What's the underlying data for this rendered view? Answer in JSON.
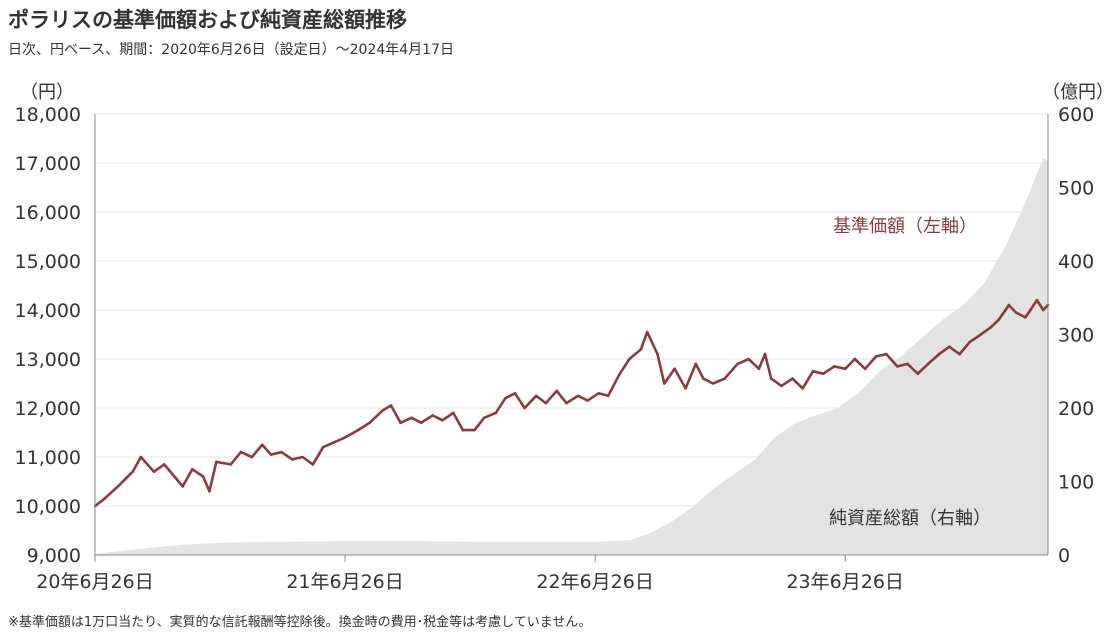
{
  "header": {
    "title": "ポラリスの基準価額および純資産総額推移",
    "subtitle": "日次、円ベース、期間：2020年6月26日（設定日）～2024年4月17日"
  },
  "footnote": "※基準価額は1万口当たり、実質的な信託報酬等控除後。換金時の費用･税金等は考慮していません。",
  "colors": {
    "nav_line": "#8b3a3e",
    "aum_area": "#e3e3e3",
    "grid": "#e6e6e6",
    "axis": "#888888"
  },
  "chart_data": {
    "type": "line",
    "title": "ポラリスの基準価額および純資産総額推移",
    "x_ticks": [
      "20年6月26日",
      "21年6月26日",
      "22年6月26日",
      "23年6月26日"
    ],
    "y_left": {
      "unit_label": "（円）",
      "min": 9000,
      "max": 18000,
      "ticks": [
        "9,000",
        "10,000",
        "11,000",
        "12,000",
        "13,000",
        "14,000",
        "15,000",
        "16,000",
        "17,000",
        "18,000"
      ]
    },
    "y_right": {
      "unit_label": "（億円）",
      "min": 0,
      "max": 600,
      "ticks": [
        "0",
        "100",
        "200",
        "300",
        "400",
        "500",
        "600"
      ]
    },
    "grid": true,
    "series": [
      {
        "name": "基準価額（左軸）",
        "axis": "left",
        "kind": "line",
        "points": [
          [
            "2020-06-26",
            10000
          ],
          [
            "2020-07-10",
            10150
          ],
          [
            "2020-07-31",
            10420
          ],
          [
            "2020-08-20",
            10700
          ],
          [
            "2020-09-01",
            11000
          ],
          [
            "2020-09-20",
            10700
          ],
          [
            "2020-10-05",
            10850
          ],
          [
            "2020-10-20",
            10600
          ],
          [
            "2020-11-01",
            10400
          ],
          [
            "2020-11-15",
            10750
          ],
          [
            "2020-12-01",
            10600
          ],
          [
            "2020-12-10",
            10300
          ],
          [
            "2020-12-20",
            10900
          ],
          [
            "2021-01-10",
            10850
          ],
          [
            "2021-01-25",
            11100
          ],
          [
            "2021-02-10",
            11000
          ],
          [
            "2021-02-25",
            11250
          ],
          [
            "2021-03-10",
            11050
          ],
          [
            "2021-03-25",
            11100
          ],
          [
            "2021-04-10",
            10950
          ],
          [
            "2021-04-25",
            11000
          ],
          [
            "2021-05-10",
            10850
          ],
          [
            "2021-05-25",
            11200
          ],
          [
            "2021-06-10",
            11300
          ],
          [
            "2021-06-26",
            11400
          ],
          [
            "2021-07-15",
            11550
          ],
          [
            "2021-08-01",
            11700
          ],
          [
            "2021-08-20",
            11950
          ],
          [
            "2021-09-01",
            12050
          ],
          [
            "2021-09-15",
            11700
          ],
          [
            "2021-10-01",
            11800
          ],
          [
            "2021-10-15",
            11700
          ],
          [
            "2021-11-01",
            11850
          ],
          [
            "2021-11-15",
            11750
          ],
          [
            "2021-12-01",
            11900
          ],
          [
            "2021-12-15",
            11550
          ],
          [
            "2022-01-01",
            11550
          ],
          [
            "2022-01-15",
            11800
          ],
          [
            "2022-02-01",
            11900
          ],
          [
            "2022-02-15",
            12200
          ],
          [
            "2022-03-01",
            12300
          ],
          [
            "2022-03-15",
            12000
          ],
          [
            "2022-04-01",
            12250
          ],
          [
            "2022-04-15",
            12100
          ],
          [
            "2022-05-01",
            12350
          ],
          [
            "2022-05-15",
            12100
          ],
          [
            "2022-06-01",
            12250
          ],
          [
            "2022-06-15",
            12150
          ],
          [
            "2022-07-01",
            12300
          ],
          [
            "2022-07-15",
            12250
          ],
          [
            "2022-08-01",
            12700
          ],
          [
            "2022-08-15",
            13000
          ],
          [
            "2022-09-01",
            13200
          ],
          [
            "2022-09-10",
            13550
          ],
          [
            "2022-09-25",
            13100
          ],
          [
            "2022-10-05",
            12500
          ],
          [
            "2022-10-20",
            12800
          ],
          [
            "2022-11-05",
            12400
          ],
          [
            "2022-11-20",
            12900
          ],
          [
            "2022-12-01",
            12600
          ],
          [
            "2022-12-15",
            12500
          ],
          [
            "2023-01-01",
            12600
          ],
          [
            "2023-01-20",
            12900
          ],
          [
            "2023-02-05",
            13000
          ],
          [
            "2023-02-20",
            12800
          ],
          [
            "2023-03-01",
            13100
          ],
          [
            "2023-03-10",
            12600
          ],
          [
            "2023-03-25",
            12450
          ],
          [
            "2023-04-10",
            12600
          ],
          [
            "2023-04-25",
            12400
          ],
          [
            "2023-05-10",
            12750
          ],
          [
            "2023-05-25",
            12700
          ],
          [
            "2023-06-10",
            12850
          ],
          [
            "2023-06-26",
            12800
          ],
          [
            "2023-07-10",
            13000
          ],
          [
            "2023-07-25",
            12800
          ],
          [
            "2023-08-10",
            13050
          ],
          [
            "2023-08-25",
            13100
          ],
          [
            "2023-09-10",
            12850
          ],
          [
            "2023-09-25",
            12900
          ],
          [
            "2023-10-10",
            12700
          ],
          [
            "2023-10-25",
            12900
          ],
          [
            "2023-11-10",
            13100
          ],
          [
            "2023-11-25",
            13250
          ],
          [
            "2023-12-10",
            13100
          ],
          [
            "2023-12-25",
            13350
          ],
          [
            "2024-01-10",
            13500
          ],
          [
            "2024-01-25",
            13650
          ],
          [
            "2024-02-05",
            13800
          ],
          [
            "2024-02-20",
            14100
          ],
          [
            "2024-03-01",
            13950
          ],
          [
            "2024-03-15",
            13850
          ],
          [
            "2024-04-01",
            14200
          ],
          [
            "2024-04-10",
            14000
          ],
          [
            "2024-04-17",
            14100
          ]
        ]
      },
      {
        "name": "純資産総額（右軸）",
        "axis": "right",
        "kind": "area",
        "points": [
          [
            "2020-06-26",
            1
          ],
          [
            "2020-08-01",
            5
          ],
          [
            "2020-09-15",
            10
          ],
          [
            "2020-11-01",
            14
          ],
          [
            "2021-01-01",
            17
          ],
          [
            "2021-04-01",
            18
          ],
          [
            "2021-07-01",
            19
          ],
          [
            "2021-10-01",
            19
          ],
          [
            "2022-01-01",
            18
          ],
          [
            "2022-04-01",
            18
          ],
          [
            "2022-07-01",
            18
          ],
          [
            "2022-08-15",
            20
          ],
          [
            "2022-09-15",
            30
          ],
          [
            "2022-10-15",
            45
          ],
          [
            "2022-11-15",
            65
          ],
          [
            "2022-12-15",
            90
          ],
          [
            "2023-01-15",
            110
          ],
          [
            "2023-02-15",
            130
          ],
          [
            "2023-03-15",
            160
          ],
          [
            "2023-04-15",
            180
          ],
          [
            "2023-05-15",
            190
          ],
          [
            "2023-06-15",
            200
          ],
          [
            "2023-07-15",
            220
          ],
          [
            "2023-08-15",
            250
          ],
          [
            "2023-09-15",
            270
          ],
          [
            "2023-10-15",
            295
          ],
          [
            "2023-11-15",
            320
          ],
          [
            "2023-12-15",
            340
          ],
          [
            "2024-01-15",
            370
          ],
          [
            "2024-02-15",
            420
          ],
          [
            "2024-03-15",
            480
          ],
          [
            "2024-04-10",
            540
          ],
          [
            "2024-04-17",
            535
          ]
        ]
      }
    ],
    "annotations": [
      {
        "text": "基準価額（左軸）",
        "series": "基準価額（左軸）"
      },
      {
        "text": "純資産総額（右軸）",
        "series": "純資産総額（右軸）"
      }
    ]
  }
}
